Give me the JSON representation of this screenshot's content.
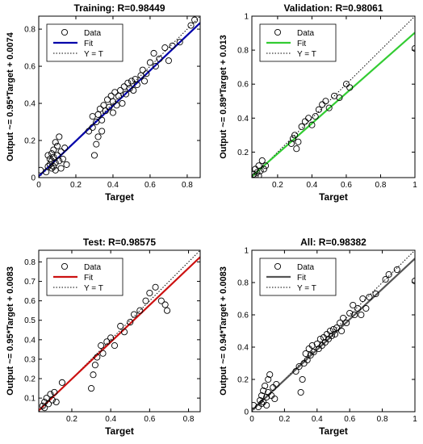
{
  "legend_labels": {
    "data": "Data",
    "fit": "Fit",
    "yt": "Y = T"
  },
  "colors": {
    "axes": "#000000",
    "grid": "#cccccc",
    "marker": "#000000",
    "identity": "#000000"
  },
  "chart_data": [
    {
      "type": "scatter",
      "title": "Training: R=0.98449",
      "xlabel": "Target",
      "ylabel": "Output ~= 0.95*Target + 0.0074",
      "xlim": [
        0,
        0.87
      ],
      "ylim": [
        0,
        0.87
      ],
      "xticks": [
        0,
        0.2,
        0.4,
        0.6,
        0.8
      ],
      "yticks": [
        0,
        0.2,
        0.4,
        0.6,
        0.8
      ],
      "fit": {
        "slope": 0.95,
        "intercept": 0.0074,
        "color": "#0000aa"
      },
      "legend": "top-left",
      "points": [
        [
          0.01,
          0.04
        ],
        [
          0.04,
          0.03
        ],
        [
          0.05,
          0.06
        ],
        [
          0.06,
          0.1
        ],
        [
          0.06,
          0.07
        ],
        [
          0.07,
          0.13
        ],
        [
          0.07,
          0.05
        ],
        [
          0.07,
          0.09
        ],
        [
          0.08,
          0.15
        ],
        [
          0.08,
          0.06
        ],
        [
          0.08,
          0.11
        ],
        [
          0.09,
          0.08
        ],
        [
          0.09,
          0.19
        ],
        [
          0.1,
          0.12
        ],
        [
          0.1,
          0.17
        ],
        [
          0.11,
          0.09
        ],
        [
          0.11,
          0.22
        ],
        [
          0.12,
          0.14
        ],
        [
          0.13,
          0.1
        ],
        [
          0.14,
          0.16
        ],
        [
          0.15,
          0.07
        ],
        [
          0.05,
          0.12
        ],
        [
          0.09,
          0.04
        ],
        [
          0.12,
          0.05
        ],
        [
          0.27,
          0.25
        ],
        [
          0.29,
          0.27
        ],
        [
          0.3,
          0.12
        ],
        [
          0.31,
          0.18
        ],
        [
          0.31,
          0.3
        ],
        [
          0.32,
          0.22
        ],
        [
          0.32,
          0.34
        ],
        [
          0.33,
          0.37
        ],
        [
          0.34,
          0.31
        ],
        [
          0.35,
          0.39
        ],
        [
          0.36,
          0.36
        ],
        [
          0.37,
          0.42
        ],
        [
          0.38,
          0.38
        ],
        [
          0.39,
          0.44
        ],
        [
          0.4,
          0.41
        ],
        [
          0.4,
          0.35
        ],
        [
          0.41,
          0.46
        ],
        [
          0.42,
          0.39
        ],
        [
          0.43,
          0.44
        ],
        [
          0.44,
          0.47
        ],
        [
          0.45,
          0.4
        ],
        [
          0.46,
          0.49
        ],
        [
          0.47,
          0.45
        ],
        [
          0.48,
          0.51
        ],
        [
          0.49,
          0.48
        ],
        [
          0.5,
          0.52
        ],
        [
          0.51,
          0.47
        ],
        [
          0.52,
          0.53
        ],
        [
          0.53,
          0.5
        ],
        [
          0.55,
          0.55
        ],
        [
          0.56,
          0.58
        ],
        [
          0.57,
          0.52
        ],
        [
          0.58,
          0.56
        ],
        [
          0.6,
          0.62
        ],
        [
          0.62,
          0.67
        ],
        [
          0.63,
          0.6
        ],
        [
          0.65,
          0.64
        ],
        [
          0.68,
          0.7
        ],
        [
          0.7,
          0.63
        ],
        [
          0.72,
          0.71
        ],
        [
          0.76,
          0.73
        ],
        [
          0.82,
          0.82
        ],
        [
          0.84,
          0.85
        ],
        [
          0.29,
          0.33
        ],
        [
          0.34,
          0.25
        ]
      ]
    },
    {
      "type": "scatter",
      "title": "Validation: R=0.98061",
      "xlabel": "Target",
      "ylabel": "Output ~= 0.89*Target + 0.013",
      "xlim": [
        0.05,
        1.0
      ],
      "ylim": [
        0.05,
        1.0
      ],
      "xticks": [
        0.2,
        0.4,
        0.6,
        0.8,
        1
      ],
      "yticks": [
        0.2,
        0.4,
        0.6,
        0.8,
        1
      ],
      "fit": {
        "slope": 0.89,
        "intercept": 0.013,
        "color": "#33cc33"
      },
      "legend": "top-left",
      "points": [
        [
          0.06,
          0.07
        ],
        [
          0.07,
          0.1
        ],
        [
          0.08,
          0.08
        ],
        [
          0.09,
          0.12
        ],
        [
          0.1,
          0.09
        ],
        [
          0.11,
          0.15
        ],
        [
          0.12,
          0.1
        ],
        [
          0.13,
          0.12
        ],
        [
          0.07,
          0.06
        ],
        [
          0.09,
          0.06
        ],
        [
          0.28,
          0.25
        ],
        [
          0.29,
          0.28
        ],
        [
          0.3,
          0.3
        ],
        [
          0.31,
          0.22
        ],
        [
          0.32,
          0.26
        ],
        [
          0.34,
          0.35
        ],
        [
          0.36,
          0.38
        ],
        [
          0.38,
          0.4
        ],
        [
          0.4,
          0.36
        ],
        [
          0.42,
          0.41
        ],
        [
          0.44,
          0.45
        ],
        [
          0.46,
          0.48
        ],
        [
          0.48,
          0.5
        ],
        [
          0.5,
          0.46
        ],
        [
          0.53,
          0.53
        ],
        [
          0.56,
          0.52
        ],
        [
          0.6,
          0.6
        ],
        [
          0.62,
          0.58
        ],
        [
          1.0,
          0.81
        ]
      ]
    },
    {
      "type": "scatter",
      "title": "Test: R=0.98575",
      "xlabel": "Target",
      "ylabel": "Output ~= 0.95*Target + 0.0083",
      "xlim": [
        0.03,
        0.86
      ],
      "ylim": [
        0.03,
        0.86
      ],
      "xticks": [
        0.2,
        0.4,
        0.6,
        0.8
      ],
      "yticks": [
        0.1,
        0.2,
        0.3,
        0.4,
        0.5,
        0.6,
        0.7,
        0.8
      ],
      "fit": {
        "slope": 0.95,
        "intercept": 0.0083,
        "color": "#cc1111"
      },
      "legend": "top-left",
      "points": [
        [
          0.05,
          0.06
        ],
        [
          0.06,
          0.08
        ],
        [
          0.07,
          0.1
        ],
        [
          0.08,
          0.07
        ],
        [
          0.09,
          0.12
        ],
        [
          0.1,
          0.09
        ],
        [
          0.11,
          0.13
        ],
        [
          0.12,
          0.08
        ],
        [
          0.15,
          0.18
        ],
        [
          0.06,
          0.05
        ],
        [
          0.3,
          0.15
        ],
        [
          0.31,
          0.22
        ],
        [
          0.32,
          0.27
        ],
        [
          0.33,
          0.31
        ],
        [
          0.35,
          0.37
        ],
        [
          0.36,
          0.33
        ],
        [
          0.38,
          0.39
        ],
        [
          0.4,
          0.41
        ],
        [
          0.42,
          0.37
        ],
        [
          0.45,
          0.47
        ],
        [
          0.47,
          0.44
        ],
        [
          0.5,
          0.49
        ],
        [
          0.52,
          0.53
        ],
        [
          0.55,
          0.55
        ],
        [
          0.58,
          0.6
        ],
        [
          0.6,
          0.64
        ],
        [
          0.63,
          0.67
        ],
        [
          0.66,
          0.6
        ],
        [
          0.68,
          0.58
        ],
        [
          0.69,
          0.55
        ]
      ]
    },
    {
      "type": "scatter",
      "title": "All: R=0.98382",
      "xlabel": "Target",
      "ylabel": "Output ~= 0.94*Target + 0.0083",
      "xlim": [
        0,
        1.0
      ],
      "ylim": [
        0,
        1.0
      ],
      "xticks": [
        0,
        0.2,
        0.4,
        0.6,
        0.8,
        1
      ],
      "yticks": [
        0,
        0.2,
        0.4,
        0.6,
        0.8,
        1
      ],
      "fit": {
        "slope": 0.94,
        "intercept": 0.0083,
        "color": "#555555"
      },
      "legend": "top-left",
      "points": [
        [
          0.01,
          0.04
        ],
        [
          0.04,
          0.03
        ],
        [
          0.05,
          0.07
        ],
        [
          0.06,
          0.1
        ],
        [
          0.07,
          0.13
        ],
        [
          0.07,
          0.06
        ],
        [
          0.08,
          0.16
        ],
        [
          0.09,
          0.09
        ],
        [
          0.1,
          0.2
        ],
        [
          0.1,
          0.12
        ],
        [
          0.11,
          0.23
        ],
        [
          0.12,
          0.1
        ],
        [
          0.13,
          0.15
        ],
        [
          0.14,
          0.08
        ],
        [
          0.15,
          0.17
        ],
        [
          0.06,
          0.05
        ],
        [
          0.09,
          0.04
        ],
        [
          0.27,
          0.25
        ],
        [
          0.29,
          0.28
        ],
        [
          0.3,
          0.12
        ],
        [
          0.31,
          0.2
        ],
        [
          0.32,
          0.3
        ],
        [
          0.33,
          0.36
        ],
        [
          0.34,
          0.32
        ],
        [
          0.35,
          0.39
        ],
        [
          0.36,
          0.35
        ],
        [
          0.37,
          0.41
        ],
        [
          0.38,
          0.37
        ],
        [
          0.4,
          0.42
        ],
        [
          0.41,
          0.39
        ],
        [
          0.42,
          0.45
        ],
        [
          0.43,
          0.41
        ],
        [
          0.44,
          0.46
        ],
        [
          0.45,
          0.43
        ],
        [
          0.46,
          0.48
        ],
        [
          0.47,
          0.45
        ],
        [
          0.48,
          0.5
        ],
        [
          0.49,
          0.47
        ],
        [
          0.5,
          0.51
        ],
        [
          0.51,
          0.48
        ],
        [
          0.52,
          0.52
        ],
        [
          0.54,
          0.55
        ],
        [
          0.55,
          0.5
        ],
        [
          0.56,
          0.58
        ],
        [
          0.58,
          0.55
        ],
        [
          0.6,
          0.61
        ],
        [
          0.62,
          0.66
        ],
        [
          0.63,
          0.6
        ],
        [
          0.65,
          0.64
        ],
        [
          0.67,
          0.6
        ],
        [
          0.68,
          0.7
        ],
        [
          0.7,
          0.64
        ],
        [
          0.72,
          0.71
        ],
        [
          0.76,
          0.73
        ],
        [
          0.82,
          0.82
        ],
        [
          0.84,
          0.85
        ],
        [
          0.89,
          0.88
        ],
        [
          1.0,
          0.81
        ]
      ]
    }
  ]
}
